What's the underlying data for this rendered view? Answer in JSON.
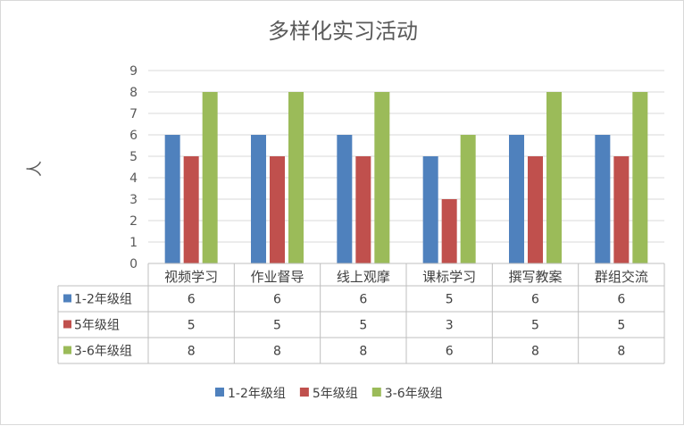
{
  "chart_data": {
    "type": "bar",
    "title": "多样化实习活动",
    "ylabel": "人",
    "xlabel": "",
    "ylim": [
      0,
      9
    ],
    "yticks": [
      0,
      1,
      2,
      3,
      4,
      5,
      6,
      7,
      8,
      9
    ],
    "grid": true,
    "legend": "bottom",
    "data_table": true,
    "categories": [
      "视频学习",
      "作业督导",
      "线上观摩",
      "课标学习",
      "撰写教案",
      "群组交流"
    ],
    "series": [
      {
        "name": "1-2年级组",
        "color": "#4f81bd",
        "values": [
          6,
          6,
          6,
          5,
          6,
          6
        ]
      },
      {
        "name": "5年级组",
        "color": "#c0504d",
        "values": [
          5,
          5,
          5,
          3,
          5,
          5
        ]
      },
      {
        "name": "3-6年级组",
        "color": "#9bbb59",
        "values": [
          8,
          8,
          8,
          6,
          8,
          8
        ]
      }
    ]
  }
}
